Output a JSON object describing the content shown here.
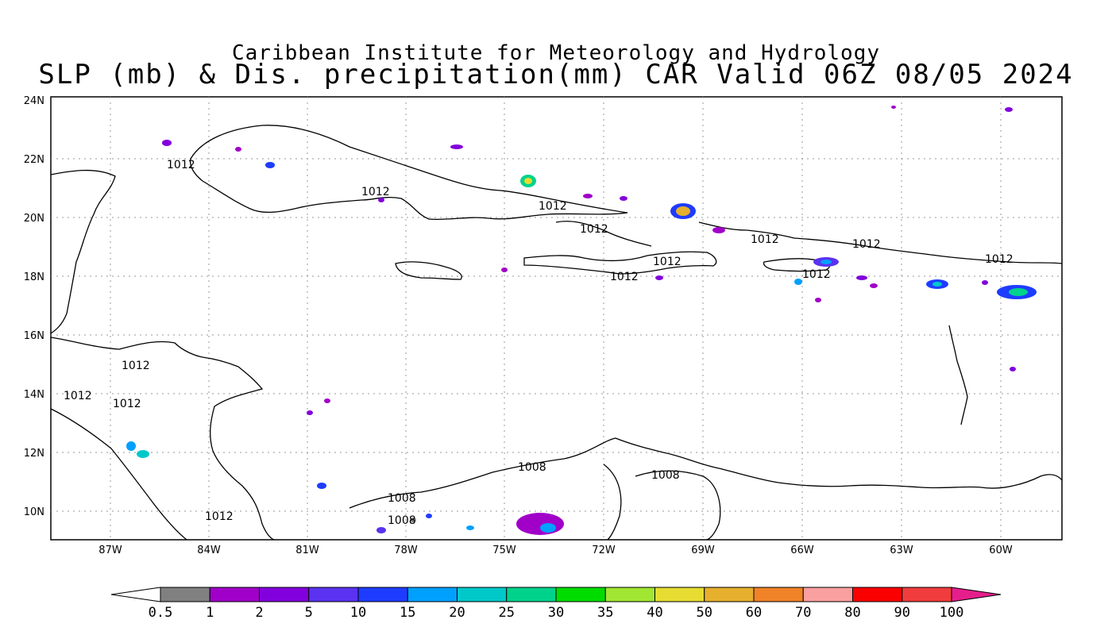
{
  "titles": {
    "line1": "Caribbean Institute for Meteorology and Hydrology",
    "line2": "SLP (mb) & Dis. precipitation(mm) CAR Valid 06Z 08/05 2024"
  },
  "axes": {
    "lon_labels": [
      "87W",
      "84W",
      "81W",
      "78W",
      "75W",
      "72W",
      "69W",
      "66W",
      "63W",
      "60W"
    ],
    "lat_labels": [
      "24N",
      "22N",
      "20N",
      "18N",
      "16N",
      "14N",
      "12N",
      "10N"
    ]
  },
  "contour_labels": [
    {
      "text": "1012"
    },
    {
      "text": "1012"
    },
    {
      "text": "1012"
    },
    {
      "text": "1012"
    },
    {
      "text": "1012"
    },
    {
      "text": "1012"
    },
    {
      "text": "1012"
    },
    {
      "text": "1012"
    },
    {
      "text": "1012"
    },
    {
      "text": "1012"
    },
    {
      "text": "1012"
    },
    {
      "text": "1012"
    },
    {
      "text": "1012"
    },
    {
      "text": "1012"
    },
    {
      "text": "1008"
    },
    {
      "text": "1008"
    },
    {
      "text": "1008"
    },
    {
      "text": "1008"
    }
  ],
  "colorbar": {
    "labels": [
      "0.5",
      "1",
      "2",
      "5",
      "10",
      "15",
      "20",
      "25",
      "30",
      "35",
      "40",
      "50",
      "60",
      "70",
      "80",
      "90",
      "100"
    ],
    "colors": [
      "#808080",
      "#a000c8",
      "#8200dc",
      "#5a32f0",
      "#1e3cff",
      "#00a0ff",
      "#00c8c8",
      "#00d28c",
      "#00dc00",
      "#a0e632",
      "#e6dc32",
      "#e6af2d",
      "#f08228",
      "#faa0a0",
      "#fa0000",
      "#f03c3c"
    ],
    "under_color": "#ffffff",
    "over_color": "#e61e8c"
  }
}
